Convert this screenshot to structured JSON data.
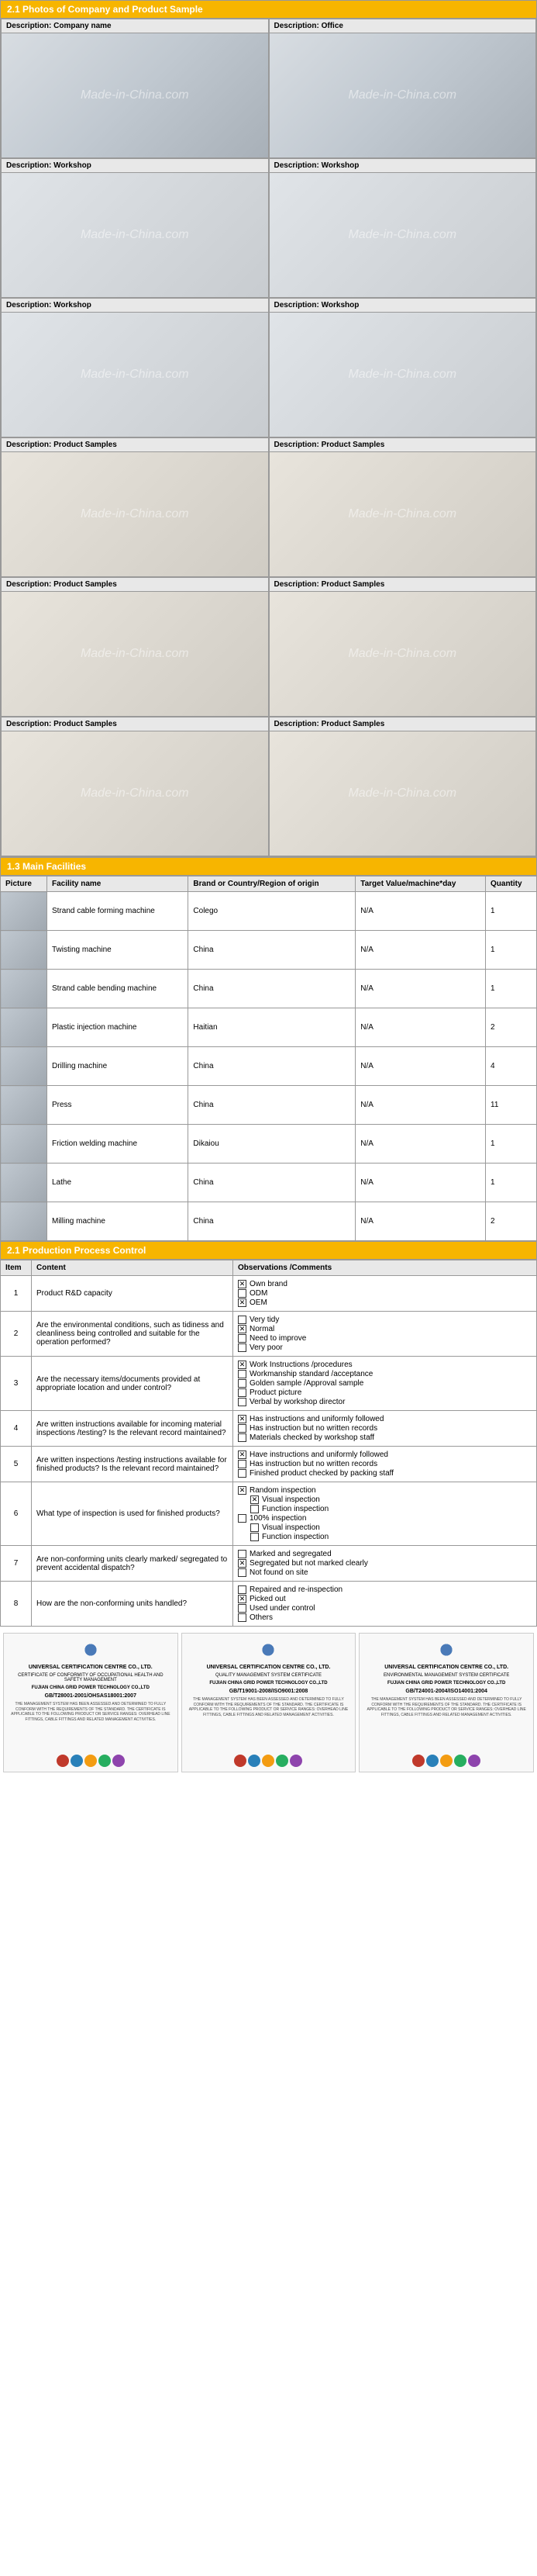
{
  "section1": {
    "title": "2.1  Photos of Company and Product Sample",
    "watermark": "Made-in-China.com",
    "cells": [
      {
        "desc": "Description: Company name",
        "cls": ""
      },
      {
        "desc": "Description: Office",
        "cls": ""
      },
      {
        "desc": "Description: Workshop",
        "cls": "workshop"
      },
      {
        "desc": "Description: Workshop",
        "cls": "workshop"
      },
      {
        "desc": "Description: Workshop",
        "cls": "workshop"
      },
      {
        "desc": "Description: Workshop",
        "cls": "workshop"
      },
      {
        "desc": "Description: Product Samples",
        "cls": "product"
      },
      {
        "desc": "Description: Product Samples",
        "cls": "product"
      },
      {
        "desc": "Description: Product Samples",
        "cls": "product"
      },
      {
        "desc": "Description: Product Samples",
        "cls": "product"
      },
      {
        "desc": "Description: Product Samples",
        "cls": "product"
      },
      {
        "desc": "Description: Product Samples",
        "cls": "product"
      }
    ]
  },
  "section2": {
    "title": "1.3 Main Facilities",
    "headers": [
      "Picture",
      "Facility name",
      "Brand or Country/Region of origin",
      "Target Value/machine*day",
      "Quantity"
    ],
    "rows": [
      [
        "Strand cable forming machine",
        "Colego",
        "N/A",
        "1"
      ],
      [
        "Twisting machine",
        "China",
        "N/A",
        "1"
      ],
      [
        "Strand cable bending machine",
        "China",
        "N/A",
        "1"
      ],
      [
        "Plastic injection machine",
        "Haitian",
        "N/A",
        "2"
      ],
      [
        "Drilling machine",
        "China",
        "N/A",
        "4"
      ],
      [
        "Press",
        "China",
        "N/A",
        "11"
      ],
      [
        "Friction welding machine",
        "Dikaiou",
        "N/A",
        "1"
      ],
      [
        "Lathe",
        "China",
        "N/A",
        "1"
      ],
      [
        "Milling machine",
        "China",
        "N/A",
        "2"
      ]
    ]
  },
  "section3": {
    "title": "2.1 Production Process Control",
    "headers": [
      "Item",
      "Content",
      "Observations /Comments"
    ],
    "rows": [
      {
        "item": "1",
        "content": "Product R&D capacity",
        "obs": [
          {
            "c": true,
            "t": "Own brand"
          },
          {
            "c": false,
            "t": "ODM"
          },
          {
            "c": true,
            "t": "OEM"
          }
        ]
      },
      {
        "item": "2",
        "content": "Are the environmental conditions, such as tidiness and cleanliness being controlled and suitable for the operation performed?",
        "obs": [
          {
            "c": false,
            "t": "Very tidy"
          },
          {
            "c": true,
            "t": "Normal"
          },
          {
            "c": false,
            "t": "Need to improve"
          },
          {
            "c": false,
            "t": "Very poor"
          }
        ]
      },
      {
        "item": "3",
        "content": "Are the necessary items/documents provided at appropriate location and under control?",
        "obs": [
          {
            "c": true,
            "t": "Work Instructions /procedures"
          },
          {
            "c": false,
            "t": "Workmanship standard /acceptance"
          },
          {
            "c": false,
            "t": "Golden sample /Approval sample"
          },
          {
            "c": false,
            "t": "Product picture"
          },
          {
            "c": false,
            "t": "Verbal by workshop director"
          }
        ]
      },
      {
        "item": "4",
        "content": "Are written instructions available for incoming material inspections /testing? Is the relevant record maintained?",
        "obs": [
          {
            "c": true,
            "t": "Has instructions and uniformly followed"
          },
          {
            "c": false,
            "t": "Has instruction but no written records"
          },
          {
            "c": false,
            "t": "Materials checked by workshop staff"
          }
        ]
      },
      {
        "item": "5",
        "content": "Are written inspections /testing instructions available for finished products? Is the relevant record maintained?",
        "obs": [
          {
            "c": true,
            "t": "Have instructions and uniformly followed"
          },
          {
            "c": false,
            "t": "Has instruction but no written records"
          },
          {
            "c": false,
            "t": "Finished product checked by packing staff"
          }
        ]
      },
      {
        "item": "6",
        "content": "What type of inspection is used for finished products?",
        "obs": [
          {
            "c": true,
            "t": "Random inspection"
          },
          {
            "c": true,
            "t": "Visual inspection",
            "indent": true
          },
          {
            "c": false,
            "t": "Function inspection",
            "indent": true
          },
          {
            "c": false,
            "t": "100% inspection"
          },
          {
            "c": false,
            "t": "Visual inspection",
            "indent": true
          },
          {
            "c": false,
            "t": "Function inspection",
            "indent": true
          }
        ]
      },
      {
        "item": "7",
        "content": "Are non-conforming units clearly marked/ segregated to prevent accidental dispatch?",
        "obs": [
          {
            "c": false,
            "t": "Marked and segregated"
          },
          {
            "c": true,
            "t": "Segregated but not marked clearly"
          },
          {
            "c": false,
            "t": "Not found on site"
          }
        ]
      },
      {
        "item": "8",
        "content": "How are the non-conforming units handled?",
        "obs": [
          {
            "c": false,
            "t": "Repaired and re-inspection"
          },
          {
            "c": true,
            "t": "Picked out"
          },
          {
            "c": false,
            "t": "Used under control"
          },
          {
            "c": false,
            "t": "Others"
          }
        ]
      }
    ]
  },
  "certs": {
    "items": [
      {
        "title": "UNIVERSAL CERTIFICATION CENTRE CO., LTD.",
        "sub": "CERTIFICATE OF CONFORMITY OF OCCUPATIONAL HEALTH AND SAFETY MANAGEMENT",
        "std": "GB/T28001-2001/OHSAS18001:2007",
        "company": "FUJIAN CHINA GRID POWER TECHNOLOGY CO.,LTD"
      },
      {
        "title": "UNIVERSAL CERTIFICATION CENTRE CO., LTD.",
        "sub": "QUALITY MANAGEMENT SYSTEM CERTIFICATE",
        "std": "GB/T19001-2008/ISO9001:2008",
        "company": "FUJIAN CHINA GRID POWER TECHNOLOGY CO.,LTD"
      },
      {
        "title": "UNIVERSAL CERTIFICATION CENTRE CO., LTD.",
        "sub": "ENVIRONMENTAL MANAGEMENT SYSTEM CERTIFICATE",
        "std": "GB/T24001-2004/ISO14001:2004",
        "company": "FUJIAN CHINA GRID POWER TECHNOLOGY CO.,LTD"
      }
    ]
  },
  "colors": {
    "header_bg": "#f7b500",
    "header_fg": "#ffffff",
    "border": "#999999",
    "th_bg": "#e8e8e8"
  }
}
